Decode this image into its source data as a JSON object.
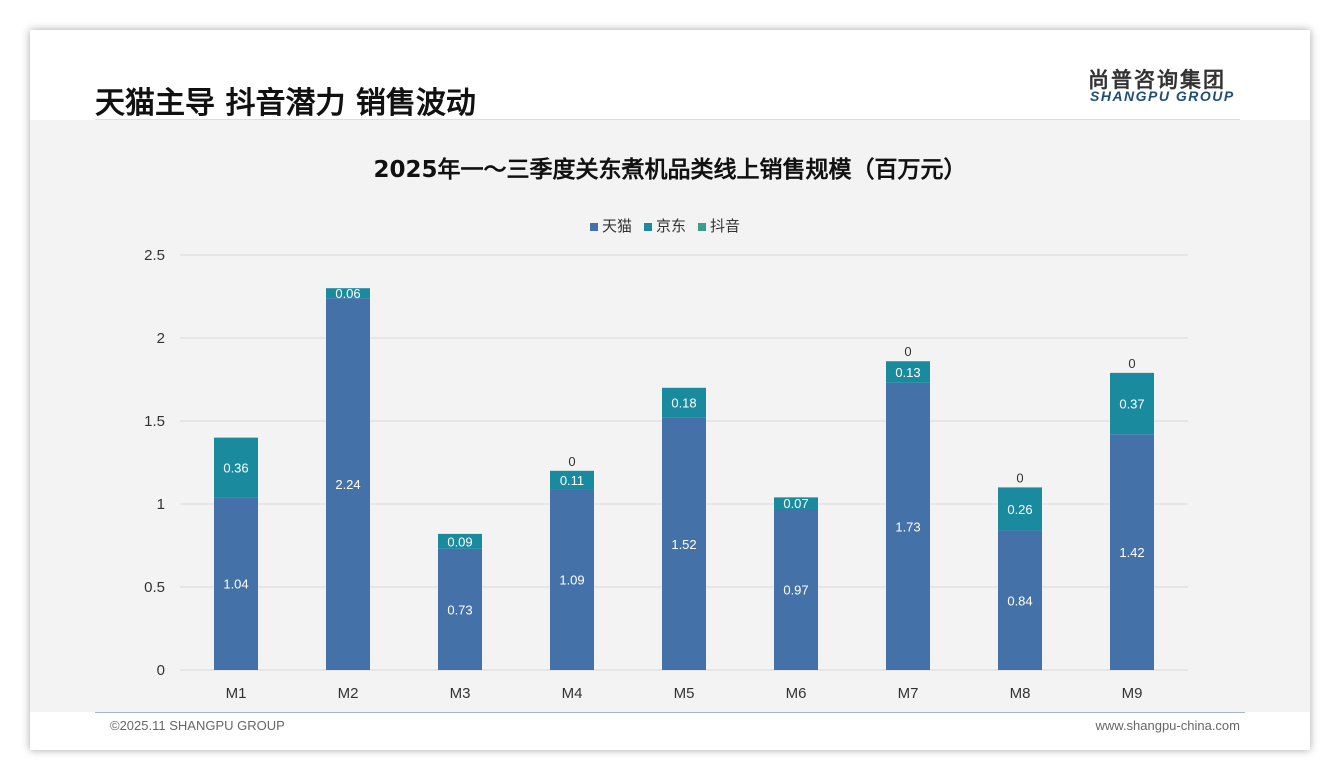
{
  "header": {
    "title": "天猫主导 抖音潜力 销售波动",
    "logo_cn": "尚普咨询集团",
    "logo_en": "SHANGPU GROUP"
  },
  "footer": {
    "copyright": "©2025.11 SHANGPU GROUP",
    "website": "www.shangpu-china.com"
  },
  "colors": {
    "tmall": "#4472a8",
    "jd": "#1a8a9f",
    "douyin": "#3a9e8a"
  },
  "chart_data": {
    "type": "bar",
    "stacked": true,
    "title": "2025年一～三季度关东煮机品类线上销售规模（百万元）",
    "categories": [
      "M1",
      "M2",
      "M3",
      "M4",
      "M5",
      "M6",
      "M7",
      "M8",
      "M9"
    ],
    "series": [
      {
        "name": "天猫",
        "values": [
          1.04,
          2.24,
          0.73,
          1.09,
          1.52,
          0.97,
          1.73,
          0.84,
          1.42
        ]
      },
      {
        "name": "京东",
        "values": [
          0.36,
          0.06,
          0.09,
          0.11,
          0.18,
          0.07,
          0.13,
          0.26,
          0.37
        ]
      },
      {
        "name": "抖音",
        "values": [
          null,
          null,
          null,
          0,
          null,
          null,
          0,
          0,
          0
        ]
      }
    ],
    "ylim": [
      0,
      2.5
    ],
    "yticks": [
      "0",
      "0.5",
      "1",
      "1.5",
      "2",
      "2.5"
    ],
    "legend": "top-center",
    "grid": true
  }
}
